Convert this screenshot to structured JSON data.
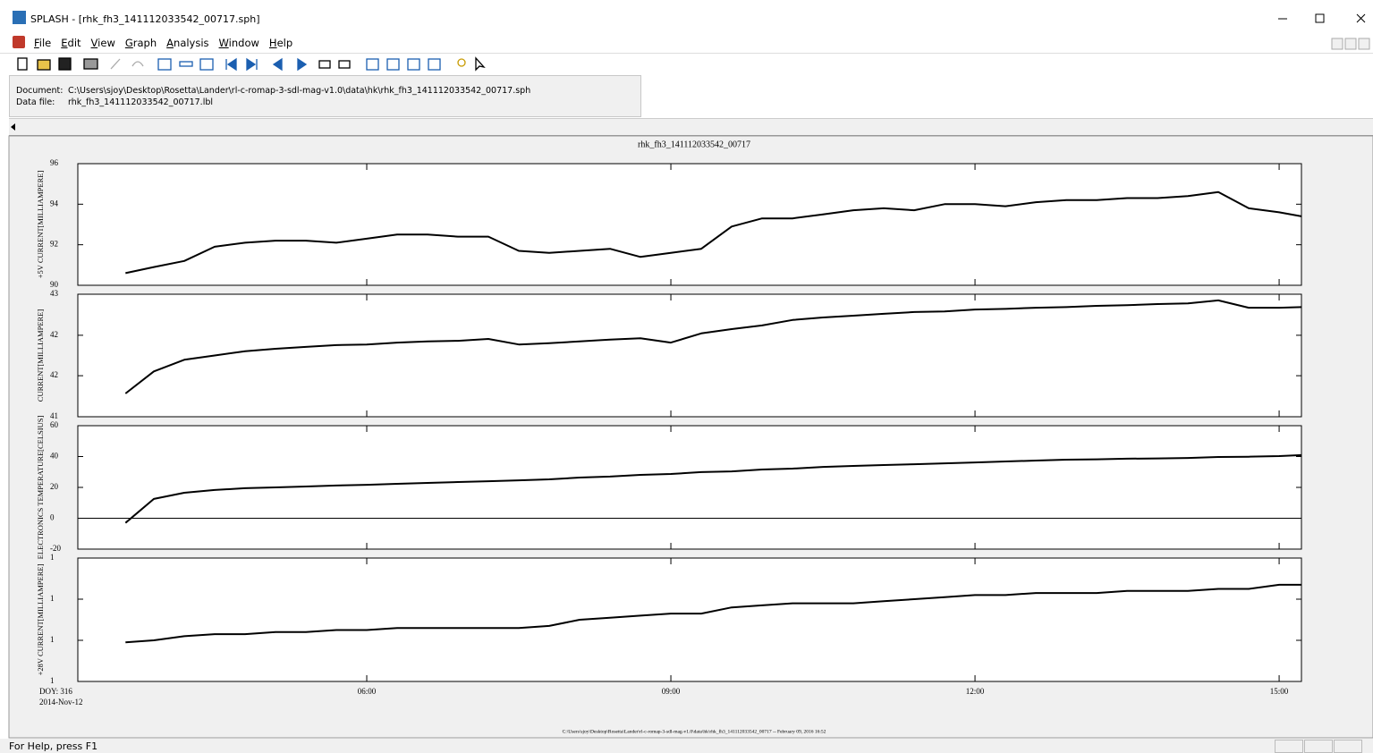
{
  "window": {
    "title": "SPLASH - [rhk_fh3_141112033542_00717.sph]"
  },
  "menu": [
    "File",
    "Edit",
    "View",
    "Graph",
    "Analysis",
    "Window",
    "Help"
  ],
  "info": {
    "document_label": "Document:",
    "document": "C:\\Users\\sjoy\\Desktop\\Rosetta\\Lander\\rl-c-romap-3-sdl-mag-v1.0\\data\\hk\\rhk_fh3_141112033542_00717.sph",
    "datafile_label": "Data file:",
    "datafile": "rhk_fh3_141112033542_00717.lbl"
  },
  "plot_title": "rhk_fh3_141112033542_00717",
  "footer": "C:\\Users\\sjoy\\Desktop\\Rosetta\\Lander\\rl-c-romap-3-sdl-mag-v1.0\\data\\hk\\rhk_fh3_141112033542_00717 -- February 09, 2016 16:52",
  "status": "For Help, press F1",
  "chart_data": [
    {
      "type": "line",
      "ylabel": "+5V CURRENT[MILLIAMPERE]",
      "color": "#000000",
      "xlim": [
        3.15,
        15.22
      ],
      "ylim": [
        90,
        96
      ],
      "yticks": [
        90,
        92,
        94,
        96
      ],
      "x": [
        3.62,
        3.9,
        4.2,
        4.5,
        4.8,
        5.1,
        5.4,
        5.7,
        6.0,
        6.3,
        6.6,
        6.9,
        7.2,
        7.5,
        7.8,
        8.1,
        8.4,
        8.7,
        9.0,
        9.3,
        9.6,
        9.9,
        10.2,
        10.5,
        10.8,
        11.1,
        11.4,
        11.7,
        12.0,
        12.3,
        12.6,
        12.9,
        13.2,
        13.5,
        13.8,
        14.1,
        14.4,
        14.7,
        15.0,
        15.22
      ],
      "values": [
        90.6,
        90.9,
        91.2,
        91.9,
        92.1,
        92.2,
        92.2,
        92.1,
        92.3,
        92.5,
        92.5,
        92.4,
        92.4,
        91.7,
        91.6,
        91.7,
        91.8,
        91.4,
        91.6,
        91.8,
        92.9,
        93.3,
        93.3,
        93.5,
        93.7,
        93.8,
        93.7,
        94.0,
        94.0,
        93.9,
        94.1,
        94.2,
        94.2,
        94.3,
        94.3,
        94.4,
        94.6,
        93.8,
        93.6,
        93.4
      ]
    },
    {
      "type": "line",
      "ylabel": "CURRENT[MILLIAMPERE]",
      "color": "#000000",
      "xlim": [
        3.15,
        15.22
      ],
      "ylim": [
        41,
        43
      ],
      "yticks": [
        41,
        {
          "value": 41.67,
          "label": "42"
        },
        {
          "value": 42.33,
          "label": "42"
        },
        43
      ],
      "x": [
        3.62,
        3.9,
        4.2,
        4.5,
        4.8,
        5.1,
        5.4,
        5.7,
        6.0,
        6.3,
        6.6,
        6.9,
        7.2,
        7.5,
        7.8,
        8.1,
        8.4,
        8.7,
        9.0,
        9.3,
        9.6,
        9.9,
        10.2,
        10.5,
        10.8,
        11.1,
        11.4,
        11.7,
        12.0,
        12.3,
        12.6,
        12.9,
        13.2,
        13.5,
        13.8,
        14.1,
        14.4,
        14.7,
        15.0,
        15.22
      ],
      "values": [
        41.38,
        41.74,
        41.93,
        42.0,
        42.07,
        42.11,
        42.14,
        42.17,
        42.18,
        42.21,
        42.23,
        42.24,
        42.27,
        42.18,
        42.2,
        42.23,
        42.26,
        42.28,
        42.21,
        42.36,
        42.43,
        42.49,
        42.58,
        42.62,
        42.65,
        42.68,
        42.71,
        42.72,
        42.75,
        42.76,
        42.78,
        42.79,
        42.81,
        42.82,
        42.84,
        42.85,
        42.9,
        42.78,
        42.78,
        42.79
      ]
    },
    {
      "type": "line",
      "ylabel": "ELECTRONICS TEMPERATURE[CELSIUS]",
      "color": "#000000",
      "xlim": [
        3.15,
        15.22
      ],
      "ylim": [
        -20,
        60
      ],
      "yticks": [
        -20,
        0,
        20,
        40,
        60
      ],
      "hline": 0,
      "x": [
        3.62,
        3.9,
        4.2,
        4.5,
        4.8,
        5.1,
        5.4,
        5.7,
        6.0,
        6.3,
        6.6,
        6.9,
        7.2,
        7.5,
        7.8,
        8.1,
        8.4,
        8.7,
        9.0,
        9.3,
        9.6,
        9.9,
        10.2,
        10.5,
        10.8,
        11.1,
        11.4,
        11.7,
        12.0,
        12.3,
        12.6,
        12.9,
        13.2,
        13.5,
        13.8,
        14.1,
        14.4,
        14.7,
        15.0,
        15.22
      ],
      "values": [
        -3,
        12.5,
        16.5,
        18.3,
        19.5,
        20,
        20.6,
        21.2,
        21.7,
        22.3,
        22.9,
        23.5,
        24,
        24.6,
        25.2,
        26.4,
        27,
        28.1,
        28.7,
        29.9,
        30.4,
        31.6,
        32.2,
        33.3,
        33.9,
        34.5,
        35,
        35.6,
        36.2,
        36.8,
        37.4,
        38,
        38.2,
        38.6,
        38.8,
        39.1,
        39.7,
        39.9,
        40.3,
        40.9
      ]
    },
    {
      "type": "line",
      "ylabel": "+28V CURRENT[MILLIAMPERE]",
      "color": "#000000",
      "xlim": [
        3.15,
        15.22
      ],
      "ylim": [
        0.6,
        1.2
      ],
      "yticks": [
        {
          "value": 0.6,
          "label": "1"
        },
        {
          "value": 0.8,
          "label": "1"
        },
        {
          "value": 1.0,
          "label": "1"
        },
        {
          "value": 1.2,
          "label": "1"
        }
      ],
      "xticks": [
        {
          "value": 6,
          "label": "06:00"
        },
        {
          "value": 9,
          "label": "09:00"
        },
        {
          "value": 12,
          "label": "12:00"
        },
        {
          "value": 15,
          "label": "15:00"
        }
      ],
      "x_start_label": [
        "DOY: 316",
        "2014-Nov-12"
      ],
      "x": [
        3.62,
        3.9,
        4.2,
        4.5,
        4.8,
        5.1,
        5.4,
        5.7,
        6.0,
        6.3,
        6.6,
        6.9,
        7.2,
        7.5,
        7.8,
        8.1,
        8.4,
        8.7,
        9.0,
        9.3,
        9.6,
        9.9,
        10.2,
        10.5,
        10.8,
        11.1,
        11.4,
        11.7,
        12.0,
        12.3,
        12.6,
        12.9,
        13.2,
        13.5,
        13.8,
        14.1,
        14.4,
        14.7,
        15.0,
        15.22
      ],
      "values": [
        0.79,
        0.8,
        0.82,
        0.83,
        0.83,
        0.84,
        0.84,
        0.85,
        0.85,
        0.86,
        0.86,
        0.86,
        0.86,
        0.86,
        0.87,
        0.9,
        0.91,
        0.92,
        0.93,
        0.93,
        0.96,
        0.97,
        0.98,
        0.98,
        0.98,
        0.99,
        1.0,
        1.01,
        1.02,
        1.02,
        1.03,
        1.03,
        1.03,
        1.04,
        1.04,
        1.04,
        1.05,
        1.05,
        1.07,
        1.07
      ]
    }
  ]
}
